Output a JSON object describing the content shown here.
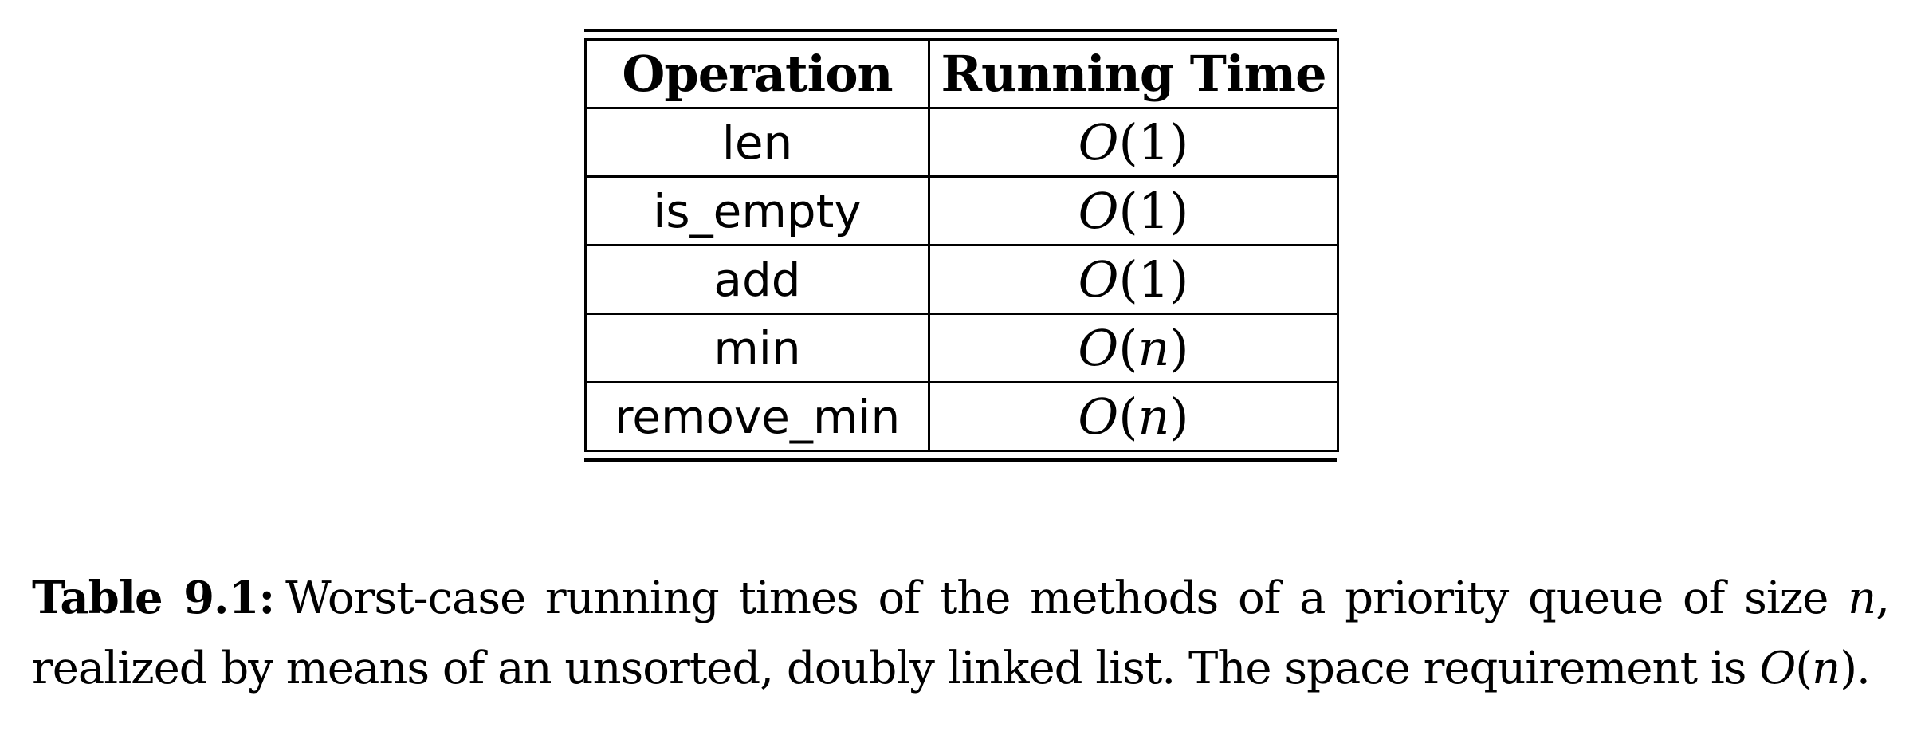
{
  "table": {
    "headers": [
      "Operation",
      "Running Time"
    ],
    "rows": [
      {
        "operation": "len",
        "big_o": "O",
        "arg": "1",
        "arg_is_var": false
      },
      {
        "operation": "is_empty",
        "big_o": "O",
        "arg": "1",
        "arg_is_var": false
      },
      {
        "operation": "add",
        "big_o": "O",
        "arg": "1",
        "arg_is_var": false
      },
      {
        "operation": "min",
        "big_o": "O",
        "arg": "n",
        "arg_is_var": true
      },
      {
        "operation": "remove_min",
        "big_o": "O",
        "arg": "n",
        "arg_is_var": true
      }
    ]
  },
  "caption": {
    "label": "Table 9.1:",
    "text_part1": "Worst-case running times of the methods of a priority queue of size",
    "var_n": "n",
    "text_part2": ", realized by means of an unsorted, doubly linked list.  The space requirement is",
    "space_big_o": "O",
    "space_arg": "n",
    "text_end": "."
  }
}
